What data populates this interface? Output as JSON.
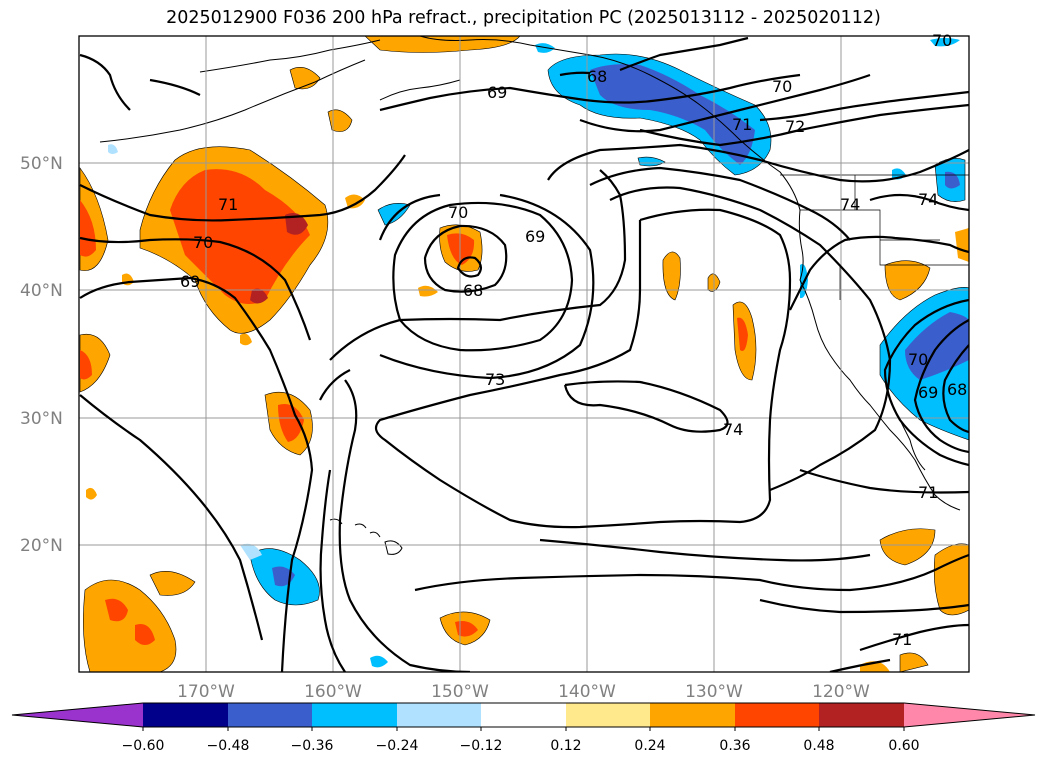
{
  "title": "2025012900 F036 200 hPa refract., precipitation PC (2025013112 - 2025020112)",
  "map": {
    "lat_range": [
      10,
      60
    ],
    "lon_range": [
      -180,
      -110
    ],
    "lat_labels": [
      "50°N",
      "40°N",
      "30°N",
      "20°N"
    ],
    "lon_labels": [
      "170°W",
      "160°W",
      "150°W",
      "140°W",
      "130°W",
      "120°W"
    ],
    "contour_labels": [
      "71",
      "70",
      "69",
      "68",
      "70",
      "69",
      "68",
      "69",
      "70",
      "72",
      "71",
      "73",
      "74",
      "74",
      "74",
      "70",
      "69",
      "68",
      "71",
      "71",
      "70"
    ]
  },
  "colorbar": {
    "ticks": [
      "−0.60",
      "−0.48",
      "−0.36",
      "−0.24",
      "−0.12",
      "0.12",
      "0.24",
      "0.36",
      "0.48",
      "0.60"
    ],
    "colors": [
      "#9a32cd",
      "#00008b",
      "#3a5fcd",
      "#00bfff",
      "#b0e2ff",
      "#ffffff",
      "#ffe98c",
      "#ffa500",
      "#ff4500",
      "#b22222",
      "#ff88aa"
    ]
  }
}
